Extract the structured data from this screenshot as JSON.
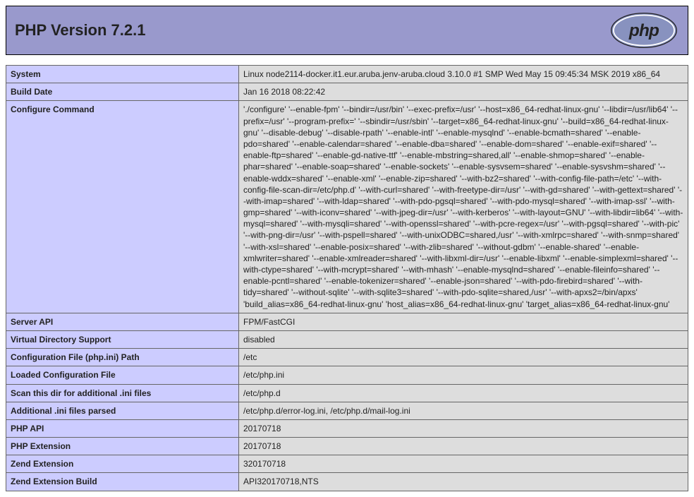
{
  "header": {
    "title": "PHP Version 7.2.1",
    "logo_text": "php",
    "logo_bg": "#8892bf",
    "logo_ellipse": "#ffffff",
    "logo_text_color": "#222222"
  },
  "colors": {
    "header_bg": "#9999cc",
    "key_bg": "#ccccff",
    "val_bg": "#dddddd",
    "border": "#666666"
  },
  "rows": [
    {
      "key": "System",
      "val": "Linux node2114-docker.it1.eur.aruba.jenv-aruba.cloud 3.10.0 #1 SMP Wed May 15 09:45:34 MSK 2019 x86_64"
    },
    {
      "key": "Build Date",
      "val": "Jan 16 2018 08:22:42"
    },
    {
      "key": "Configure Command",
      "val": "'./configure' '--enable-fpm' '--bindir=/usr/bin' '--exec-prefix=/usr' '--host=x86_64-redhat-linux-gnu' '--libdir=/usr/lib64' '--prefix=/usr' '--program-prefix=' '--sbindir=/usr/sbin' '--target=x86_64-redhat-linux-gnu' '--build=x86_64-redhat-linux-gnu' '--disable-debug' '--disable-rpath' '--enable-intl' '--enable-mysqlnd' '--enable-bcmath=shared' '--enable-pdo=shared' '--enable-calendar=shared' '--enable-dba=shared' '--enable-dom=shared' '--enable-exif=shared' '--enable-ftp=shared' '--enable-gd-native-ttf' '--enable-mbstring=shared,all' '--enable-shmop=shared' '--enable-phar=shared' '--enable-soap=shared' '--enable-sockets' '--enable-sysvsem=shared' '--enable-sysvshm=shared' '--enable-wddx=shared' '--enable-xml' '--enable-zip=shared' '--with-bz2=shared' '--with-config-file-path=/etc' '--with-config-file-scan-dir=/etc/php.d' '--with-curl=shared' '--with-freetype-dir=/usr' '--with-gd=shared' '--with-gettext=shared' '--with-imap=shared' '--with-ldap=shared' '--with-pdo-pgsql=shared' '--with-pdo-mysql=shared' '--with-imap-ssl' '--with-gmp=shared' '--with-iconv=shared' '--with-jpeg-dir=/usr' '--with-kerberos' '--with-layout=GNU' '--with-libdir=lib64' '--with-mysql=shared' '--with-mysqli=shared' '--with-openssl=shared' '--with-pcre-regex=/usr' '--with-pgsql=shared' '--with-pic' '--with-png-dir=/usr' '--with-pspell=shared' '--with-unixODBC=shared,/usr' '--with-xmlrpc=shared' '--with-snmp=shared' '--with-xsl=shared' '--enable-posix=shared' '--with-zlib=shared' '--without-gdbm' '--enable-shared' '--enable-xmlwriter=shared' '--enable-xmlreader=shared' '--with-libxml-dir=/usr' '--enable-libxml' '--enable-simplexml=shared' '--with-ctype=shared' '--with-mcrypt=shared' '--with-mhash' '--enable-mysqlnd=shared' '--enable-fileinfo=shared' '--enable-pcntl=shared' '--enable-tokenizer=shared' '--enable-json=shared' '--with-pdo-firebird=shared' '--with-tidy=shared' '--without-sqlite' '--with-sqlite3=shared' '--with-pdo-sqlite=shared,/usr' '--with-apxs2=/bin/apxs' 'build_alias=x86_64-redhat-linux-gnu' 'host_alias=x86_64-redhat-linux-gnu' 'target_alias=x86_64-redhat-linux-gnu'"
    },
    {
      "key": "Server API",
      "val": "FPM/FastCGI"
    },
    {
      "key": "Virtual Directory Support",
      "val": "disabled"
    },
    {
      "key": "Configuration File (php.ini) Path",
      "val": "/etc"
    },
    {
      "key": "Loaded Configuration File",
      "val": "/etc/php.ini"
    },
    {
      "key": "Scan this dir for additional .ini files",
      "val": "/etc/php.d"
    },
    {
      "key": "Additional .ini files parsed",
      "val": "/etc/php.d/error-log.ini, /etc/php.d/mail-log.ini"
    },
    {
      "key": "PHP API",
      "val": "20170718"
    },
    {
      "key": "PHP Extension",
      "val": "20170718"
    },
    {
      "key": "Zend Extension",
      "val": "320170718"
    },
    {
      "key": "Zend Extension Build",
      "val": "API320170718,NTS"
    }
  ]
}
